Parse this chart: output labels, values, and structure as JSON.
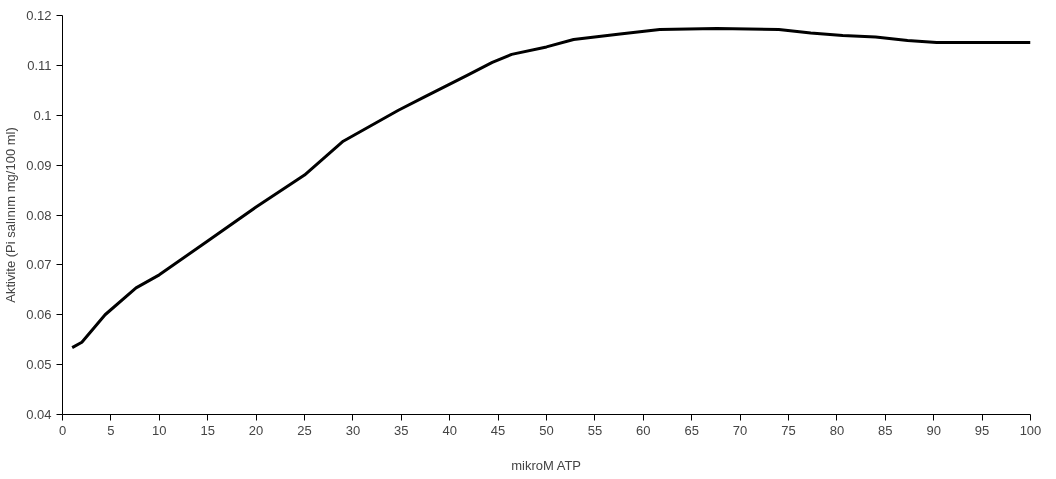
{
  "chart_data": {
    "type": "line",
    "xlabel": "mikroM ATP",
    "ylabel": "Aktivite (Pi salınım mg/100 ml)",
    "x": [
      1,
      2,
      4.4,
      7.6,
      10,
      15,
      20,
      25,
      29,
      34.7,
      37.3,
      41.8,
      44.4,
      46.4,
      50,
      52.8,
      57.6,
      61.7,
      67.6,
      74,
      77.3,
      80.6,
      84,
      87.3,
      90.3,
      95,
      100
    ],
    "series": [
      {
        "color": "#000000",
        "values": [
          0.0534,
          0.0545,
          0.06,
          0.0654,
          0.068,
          0.0748,
          0.0816,
          0.088,
          0.0948,
          0.101,
          0.1036,
          0.108,
          0.1106,
          0.1122,
          0.1137,
          0.1152,
          0.1163,
          0.1172,
          0.1174,
          0.1172,
          0.1165,
          0.116,
          0.1157,
          0.115,
          0.1146,
          0.1146,
          0.1146
        ]
      }
    ],
    "xlim": [
      0,
      100
    ],
    "xticks": [
      0,
      5,
      10,
      15,
      20,
      25,
      30,
      35,
      40,
      45,
      50,
      55,
      60,
      65,
      70,
      75,
      80,
      85,
      90,
      95,
      100
    ],
    "ylim": [
      0.04,
      0.12
    ],
    "yticks": [
      0.04,
      0.05,
      0.06,
      0.07,
      0.08,
      0.09,
      0.1,
      0.11,
      0.12
    ],
    "grid": false,
    "marker": "none",
    "line_style": "solid"
  }
}
